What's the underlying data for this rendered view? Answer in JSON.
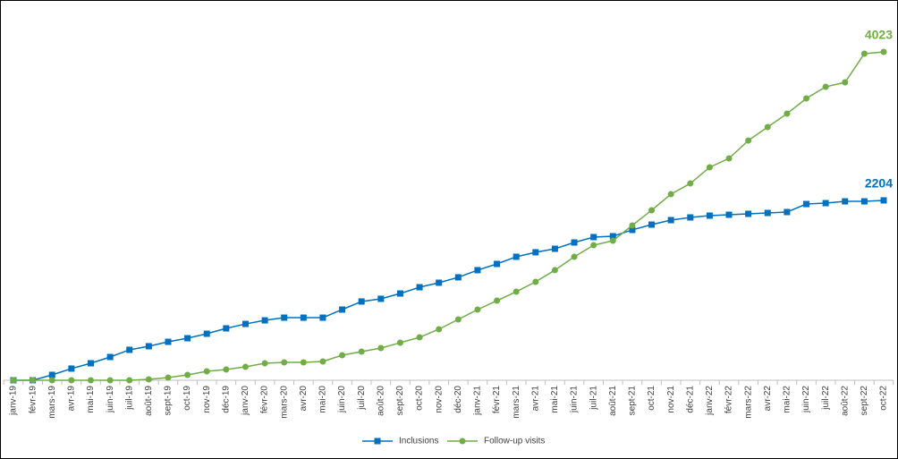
{
  "chart_data": {
    "type": "line",
    "categories": [
      "janv-19",
      "févr-19",
      "mars-19",
      "avr-19",
      "mai-19",
      "juin-19",
      "juil-19",
      "août-19",
      "sept-19",
      "oct-19",
      "nov-19",
      "déc-19",
      "janv-20",
      "févr-20",
      "mars-20",
      "avr-20",
      "mai-20",
      "juin-20",
      "juil-20",
      "août-20",
      "sept-20",
      "oct-20",
      "nov-20",
      "déc-20",
      "janv-21",
      "févr-21",
      "mars-21",
      "avr-21",
      "mai-21",
      "juin-21",
      "juil-21",
      "août-21",
      "sept-21",
      "oct-21",
      "nov-21",
      "déc-21",
      "janv-22",
      "févr-22",
      "mars-22",
      "avr-22",
      "mai-22",
      "juin-22",
      "juil-22",
      "août-22",
      "sept-22",
      "oct-22"
    ],
    "series": [
      {
        "name": "Inclusions",
        "color": "#0070c0",
        "marker": "square",
        "values": [
          0,
          0,
          66,
          143,
          208,
          285,
          373,
          417,
          471,
          515,
          570,
          636,
          690,
          734,
          767,
          767,
          767,
          866,
          965,
          998,
          1063,
          1140,
          1195,
          1261,
          1349,
          1425,
          1513,
          1568,
          1611,
          1688,
          1754,
          1765,
          1842,
          1907,
          1962,
          1995,
          2017,
          2028,
          2039,
          2050,
          2061,
          2159,
          2170,
          2192,
          2192,
          2204
        ]
      },
      {
        "name": "Follow-up visits",
        "color": "#70ad47",
        "marker": "circle",
        "values": [
          0,
          0,
          0,
          0,
          0,
          0,
          0,
          11,
          33,
          66,
          110,
          132,
          164,
          208,
          219,
          219,
          230,
          307,
          351,
          395,
          460,
          526,
          625,
          745,
          866,
          975,
          1085,
          1206,
          1349,
          1513,
          1655,
          1710,
          1897,
          2083,
          2280,
          2411,
          2609,
          2718,
          2937,
          3102,
          3266,
          3453,
          3595,
          3650,
          4001,
          4023
        ]
      }
    ],
    "legend": "bottom"
  }
}
